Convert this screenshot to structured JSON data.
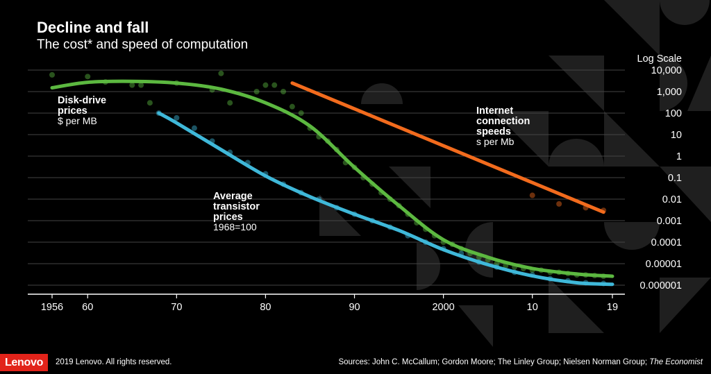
{
  "header": {
    "title": "Decline and fall",
    "subtitle": "The cost* and speed of computation"
  },
  "footer": {
    "logo": "Lenovo",
    "copyright": "2019 Lenovo. All rights reserved.",
    "sources_prefix": "Sources: John C. McCallum; Gordon Moore; The Linley Group; Nielsen Norman Group; ",
    "sources_em": "The Economist"
  },
  "colors": {
    "background": "#000000",
    "disk": "#5cb840",
    "transistor": "#3fb8d9",
    "internet": "#f26b1d",
    "grid": "#444444",
    "text": "#ffffff"
  },
  "chart_data": {
    "type": "line",
    "y_scale": "log",
    "scale_label": "Log Scale",
    "ylim_exponent": [
      -6,
      4
    ],
    "y_tick_labels": [
      "10,000",
      "1,000",
      "100",
      "10",
      "1",
      "0.1",
      "0.01",
      "0.001",
      "0.0001",
      "0.00001",
      "0.000001"
    ],
    "x_ticks": [
      1956,
      1960,
      1970,
      1980,
      1990,
      2000,
      2010,
      2019
    ],
    "x_tick_labels": [
      "1956",
      "60",
      "70",
      "80",
      "90",
      "2000",
      "10",
      "19"
    ],
    "xlim": [
      1956,
      2019
    ],
    "series": [
      {
        "key": "disk",
        "labels": [
          "Disk-drive",
          "prices"
        ],
        "sublabel": "$ per MB",
        "trend": [
          [
            1956,
            1500
          ],
          [
            1960,
            2700
          ],
          [
            1965,
            3000
          ],
          [
            1970,
            2500
          ],
          [
            1975,
            1300
          ],
          [
            1980,
            300
          ],
          [
            1985,
            25
          ],
          [
            1990,
            0.3
          ],
          [
            1995,
            0.005
          ],
          [
            2000,
            0.00013
          ],
          [
            2005,
            2e-05
          ],
          [
            2010,
            6e-06
          ],
          [
            2015,
            3.3e-06
          ],
          [
            2019,
            2.6e-06
          ]
        ],
        "points": [
          [
            1956,
            6000
          ],
          [
            1960,
            5000
          ],
          [
            1962,
            2800
          ],
          [
            1965,
            2000
          ],
          [
            1966,
            2000
          ],
          [
            1967,
            300
          ],
          [
            1970,
            2500
          ],
          [
            1974,
            1200
          ],
          [
            1975,
            7000
          ],
          [
            1976,
            300
          ],
          [
            1979,
            1000
          ],
          [
            1980,
            2000
          ],
          [
            1981,
            2000
          ],
          [
            1982,
            1000
          ],
          [
            1983,
            200
          ],
          [
            1984,
            100
          ],
          [
            1985,
            20
          ],
          [
            1986,
            8
          ],
          [
            1987,
            5
          ],
          [
            1988,
            2
          ],
          [
            1989,
            0.5
          ],
          [
            1990,
            0.3
          ],
          [
            1991,
            0.1
          ],
          [
            1992,
            0.05
          ],
          [
            1993,
            0.02
          ],
          [
            1994,
            0.01
          ],
          [
            1995,
            0.005
          ],
          [
            1996,
            0.002
          ],
          [
            1997,
            0.0008
          ],
          [
            1998,
            0.0004
          ],
          [
            1999,
            0.0002
          ],
          [
            2000,
            0.0001
          ],
          [
            2001,
            8e-05
          ],
          [
            2002,
            5e-05
          ],
          [
            2003,
            3e-05
          ],
          [
            2004,
            2e-05
          ],
          [
            2005,
            1.5e-05
          ],
          [
            2006,
            1e-05
          ],
          [
            2007,
            8e-06
          ],
          [
            2008,
            7e-06
          ],
          [
            2009,
            6e-06
          ],
          [
            2010,
            5e-06
          ],
          [
            2011,
            5e-06
          ],
          [
            2012,
            4e-06
          ],
          [
            2013,
            4e-06
          ],
          [
            2014,
            3.5e-06
          ],
          [
            2015,
            3e-06
          ],
          [
            2016,
            3e-06
          ],
          [
            2017,
            2.8e-06
          ],
          [
            2018,
            2.6e-06
          ]
        ]
      },
      {
        "key": "transistor",
        "labels": [
          "Average",
          "transistor",
          "prices"
        ],
        "sublabel": "1968=100",
        "trend": [
          [
            1968,
            100
          ],
          [
            1970,
            35
          ],
          [
            1975,
            2
          ],
          [
            1980,
            0.12
          ],
          [
            1985,
            0.013
          ],
          [
            1990,
            0.002
          ],
          [
            1995,
            0.00035
          ],
          [
            2000,
            4.5e-05
          ],
          [
            2005,
            9e-06
          ],
          [
            2010,
            2.7e-06
          ],
          [
            2015,
            1.3e-06
          ],
          [
            2019,
            1.1e-06
          ]
        ],
        "points": [
          [
            1968,
            100
          ],
          [
            1970,
            60
          ],
          [
            1972,
            20
          ],
          [
            1974,
            5
          ],
          [
            1976,
            1.5
          ],
          [
            1978,
            0.5
          ],
          [
            1980,
            0.15
          ],
          [
            1982,
            0.05
          ],
          [
            1984,
            0.02
          ],
          [
            1986,
            0.01
          ],
          [
            1988,
            0.004
          ],
          [
            1990,
            0.002
          ],
          [
            1992,
            0.001
          ],
          [
            1994,
            0.0005
          ],
          [
            1996,
            0.0002
          ],
          [
            1998,
            0.0001
          ],
          [
            2000,
            5e-05
          ],
          [
            2002,
            3e-05
          ],
          [
            2004,
            1.2e-05
          ],
          [
            2006,
            7e-06
          ],
          [
            2008,
            4e-06
          ],
          [
            2010,
            3e-06
          ],
          [
            2012,
            2e-06
          ],
          [
            2014,
            1.6e-06
          ],
          [
            2016,
            1.3e-06
          ],
          [
            2018,
            1.2e-06
          ]
        ]
      },
      {
        "key": "internet",
        "labels": [
          "Internet",
          "connection",
          "speeds"
        ],
        "sublabel": "s per Mb",
        "trend": [
          [
            1983,
            2500
          ],
          [
            2018,
            0.0025
          ]
        ],
        "points": [
          [
            2010,
            0.015
          ],
          [
            2013,
            0.006
          ],
          [
            2016,
            0.004
          ],
          [
            2018,
            0.003
          ]
        ]
      }
    ]
  }
}
